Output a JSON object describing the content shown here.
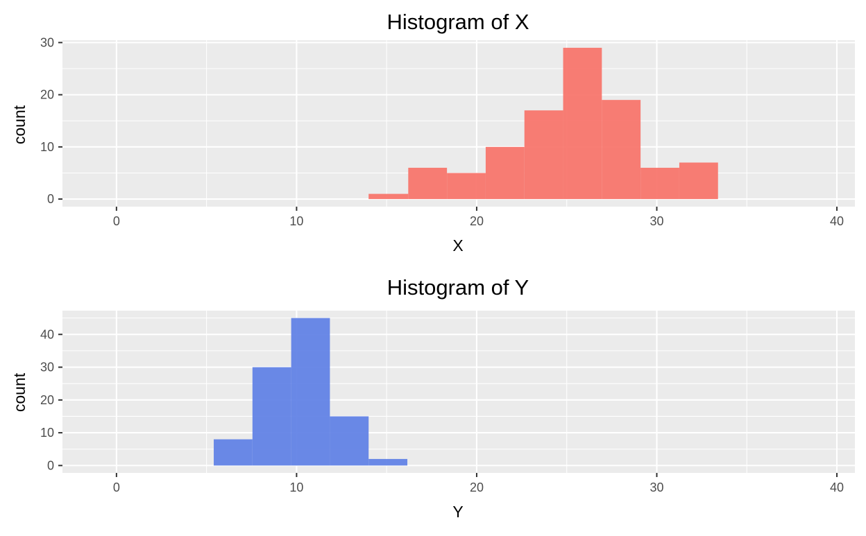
{
  "chart_data": [
    {
      "type": "bar",
      "title": "Histogram of X",
      "xlabel": "X",
      "ylabel": "count",
      "xlim": [
        -3,
        41
      ],
      "ylim": [
        -1.45,
        30.45
      ],
      "x_ticks": [
        0,
        10,
        20,
        30,
        40
      ],
      "y_ticks": [
        0,
        10,
        20,
        30
      ],
      "grid": true,
      "legend": "none",
      "color": "#F8766D",
      "bins": [
        {
          "x0": 14.0,
          "x1": 16.2,
          "count": 1
        },
        {
          "x0": 16.2,
          "x1": 18.35,
          "count": 6
        },
        {
          "x0": 18.35,
          "x1": 20.5,
          "count": 5
        },
        {
          "x0": 20.5,
          "x1": 22.65,
          "count": 10
        },
        {
          "x0": 22.65,
          "x1": 24.8,
          "count": 17
        },
        {
          "x0": 24.8,
          "x1": 26.95,
          "count": 29
        },
        {
          "x0": 26.95,
          "x1": 29.1,
          "count": 19
        },
        {
          "x0": 29.1,
          "x1": 31.25,
          "count": 6
        },
        {
          "x0": 31.25,
          "x1": 33.4,
          "count": 7
        }
      ]
    },
    {
      "type": "bar",
      "title": "Histogram of Y",
      "xlabel": "Y",
      "ylabel": "count",
      "xlim": [
        -3,
        41
      ],
      "ylim": [
        -2.25,
        47.25
      ],
      "x_ticks": [
        0,
        10,
        20,
        30,
        40
      ],
      "y_ticks": [
        0,
        10,
        20,
        30,
        40
      ],
      "grid": true,
      "legend": "none",
      "color": "#6283E6",
      "bins": [
        {
          "x0": 5.4,
          "x1": 7.55,
          "count": 8
        },
        {
          "x0": 7.55,
          "x1": 9.7,
          "count": 30
        },
        {
          "x0": 9.7,
          "x1": 11.85,
          "count": 45
        },
        {
          "x0": 11.85,
          "x1": 14.0,
          "count": 15
        },
        {
          "x0": 14.0,
          "x1": 16.15,
          "count": 2
        }
      ]
    }
  ]
}
